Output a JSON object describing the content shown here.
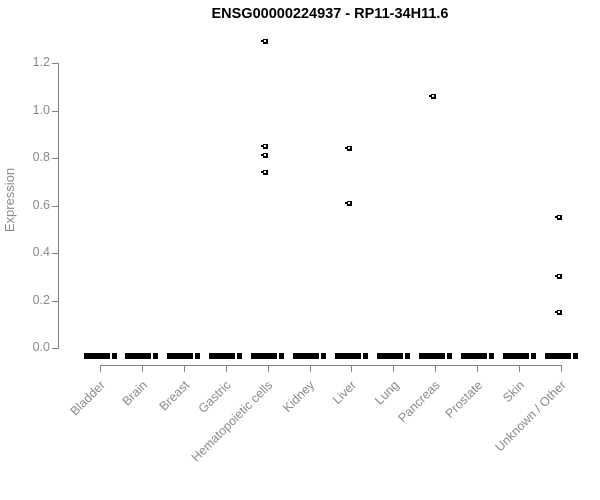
{
  "chart_data": {
    "type": "scatter",
    "title": "ENSG00000224937 - RP11-34H11.6",
    "ylabel": "Expression",
    "xlabel": "",
    "ylim": [
      0,
      1.2
    ],
    "ytick_labels": [
      "0.0",
      "0.2",
      "0.4",
      "0.6",
      "0.8",
      "1.0",
      "1.2"
    ],
    "ytick_values": [
      0,
      0.2,
      0.4,
      0.6,
      0.8,
      1.0,
      1.2
    ],
    "categories": [
      "Bladder",
      "Brain",
      "Breast",
      "Gastric",
      "Hematopoietic cells",
      "Kidney",
      "Liver",
      "Lung",
      "Pancreas",
      "Prostate",
      "Skin",
      "Unknown / Other"
    ],
    "baseline": {
      "value": 0,
      "applies_to": "all categories",
      "description": "dense overlapping samples at expression 0 rendered as a thick dashed black bar in every category"
    },
    "series": [
      {
        "category": "Hematopoietic cells",
        "values": [
          1.29,
          0.85,
          0.81,
          0.74
        ]
      },
      {
        "category": "Liver",
        "values": [
          0.84,
          0.61
        ]
      },
      {
        "category": "Pancreas",
        "values": [
          1.06
        ]
      },
      {
        "category": "Unknown / Other",
        "values": [
          0.55,
          0.3,
          0.15
        ]
      }
    ],
    "legend": "none",
    "grid": false,
    "colors": {
      "points": "#000000",
      "axis": "#828282",
      "tick_text": "#8a8a8a",
      "title_text": "#000000"
    }
  }
}
